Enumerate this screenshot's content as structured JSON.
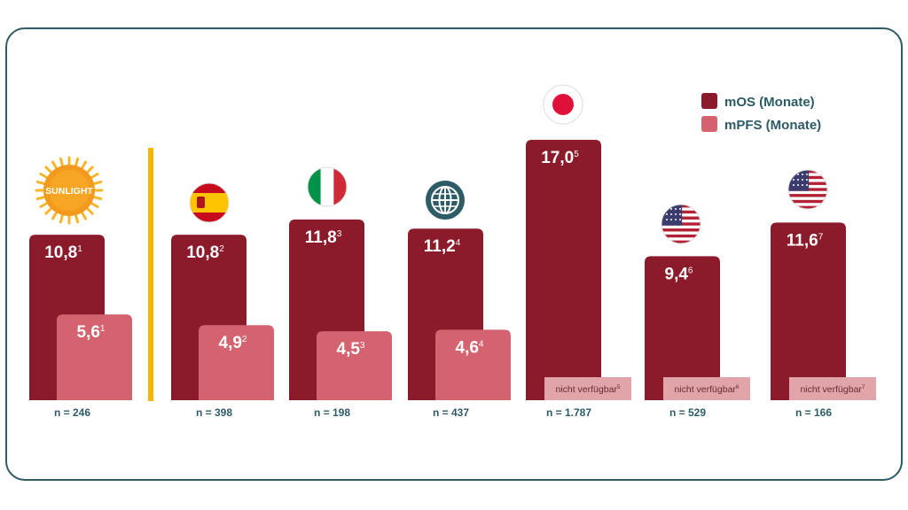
{
  "chart_data": {
    "type": "bar",
    "categories": [
      "SUNLIGHT",
      "Spanien",
      "Italien",
      "International",
      "Japan",
      "USA",
      "USA"
    ],
    "category_icons": [
      "sun-icon",
      "spain-flag-icon",
      "italy-flag-icon",
      "globe-icon",
      "japan-flag-icon",
      "usa-flag-icon",
      "usa-flag-icon"
    ],
    "series": [
      {
        "name": "mOS (Monate)",
        "color": "#8b1a2b",
        "values": [
          10.8,
          10.8,
          11.8,
          11.2,
          17.0,
          9.4,
          11.6
        ],
        "labels": [
          "10,8",
          "10,8",
          "11,8",
          "11,2",
          "17,0",
          "9,4",
          "11,6"
        ],
        "refs": [
          "1",
          "2",
          "3",
          "4",
          "5",
          "6",
          "7"
        ]
      },
      {
        "name": "mPFS (Monate)",
        "color": "#d4636f",
        "values": [
          5.6,
          4.9,
          4.5,
          4.6,
          null,
          null,
          null
        ],
        "labels": [
          "5,6",
          "4,9",
          "4,5",
          "4,6",
          "nicht verfügbar",
          "nicht verfügbar",
          "nicht verfügbar"
        ],
        "refs": [
          "1",
          "2",
          "3",
          "4",
          "5",
          "6",
          "7"
        ]
      }
    ],
    "n_labels": [
      "n = 246",
      "n = 398",
      "n = 198",
      "n = 437",
      "n = 1.787",
      "n = 529",
      "n = 166"
    ],
    "sun_label": "SUNLIGHT",
    "legend_position": "top-right",
    "ylim": [
      0,
      18
    ],
    "grid": false
  }
}
